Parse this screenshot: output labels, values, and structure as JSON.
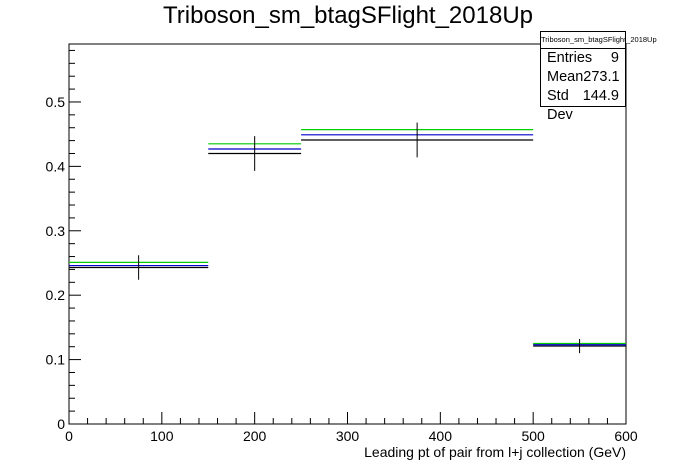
{
  "chart_data": {
    "type": "histogram",
    "title": "Triboson_sm_btagSFlight_2018Up",
    "xlabel": "Leading pt of pair from l+j collection (GeV)",
    "ylabel": "",
    "xlim": [
      0,
      600
    ],
    "ylim": [
      0,
      0.59
    ],
    "x_ticks": [
      "0",
      "100",
      "200",
      "300",
      "400",
      "500",
      "600"
    ],
    "y_ticks": [
      "0",
      "0.1",
      "0.2",
      "0.3",
      "0.4",
      "0.5"
    ],
    "bins": [
      {
        "low": 0,
        "high": 150,
        "center": 75
      },
      {
        "low": 150,
        "high": 250,
        "center": 200
      },
      {
        "low": 250,
        "high": 500,
        "center": 375
      },
      {
        "low": 500,
        "high": 600,
        "center": 550
      }
    ],
    "series": [
      {
        "color": "#00cc00",
        "values": [
          0.251,
          0.435,
          0.457,
          0.125
        ]
      },
      {
        "color": "#0000cc",
        "values": [
          0.246,
          0.427,
          0.449,
          0.123
        ]
      },
      {
        "color": "#000000",
        "values": [
          0.243,
          0.42,
          0.441,
          0.121
        ],
        "errors": [
          0.019,
          0.027,
          0.027,
          0.011
        ]
      }
    ],
    "stats": {
      "name": "Triboson_sm_btagSFlight_2018Up",
      "entries_label": "Entries",
      "entries": "9",
      "mean_label": "Mean",
      "mean": "273.1",
      "std_label": "Std Dev",
      "std": "144.9"
    }
  }
}
